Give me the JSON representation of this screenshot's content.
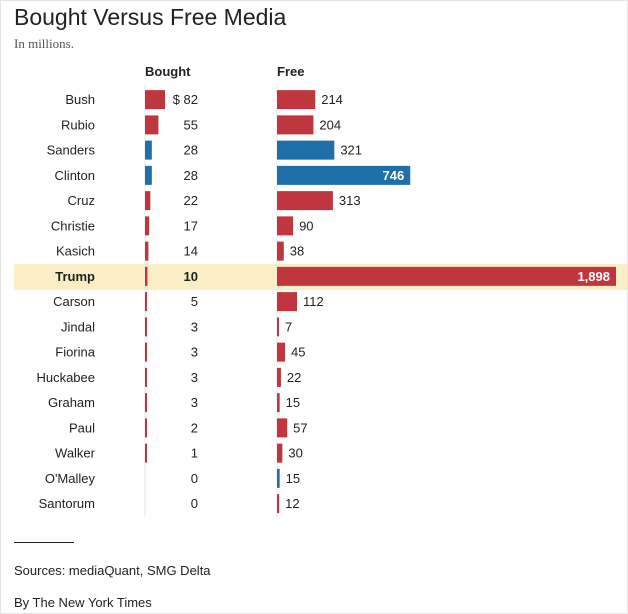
{
  "header": {
    "title": "Bought Versus Free Media",
    "subtitle": "In millions."
  },
  "colors": {
    "republican": "#c0363f",
    "democrat": "#1f6fa8",
    "highlight": "#fbeec4"
  },
  "chart_data": {
    "type": "bar",
    "title": "Bought Versus Free Media",
    "subtitle": "In millions.",
    "columns": [
      "Bought",
      "Free"
    ],
    "bought_first_label": "$ 82",
    "free_label_inside": {
      "Clinton": "746",
      "Trump": "1,898"
    },
    "highlight": "Trump",
    "categories": [
      "Bush",
      "Rubio",
      "Sanders",
      "Clinton",
      "Cruz",
      "Christie",
      "Kasich",
      "Trump",
      "Carson",
      "Jindal",
      "Fiorina",
      "Huckabee",
      "Graham",
      "Paul",
      "Walker",
      "O'Malley",
      "Santorum"
    ],
    "party": [
      "R",
      "R",
      "D",
      "D",
      "R",
      "R",
      "R",
      "R",
      "R",
      "R",
      "R",
      "R",
      "R",
      "R",
      "R",
      "D",
      "R"
    ],
    "series": [
      {
        "name": "Bought",
        "values": [
          82,
          55,
          28,
          28,
          22,
          17,
          14,
          10,
          5,
          3,
          3,
          3,
          3,
          2,
          1,
          0,
          0
        ]
      },
      {
        "name": "Free",
        "values": [
          214,
          204,
          321,
          746,
          313,
          90,
          38,
          1898,
          112,
          7,
          45,
          22,
          15,
          57,
          30,
          15,
          12
        ]
      }
    ]
  },
  "footer": {
    "sources": "Sources: mediaQuant, SMG Delta",
    "byline": "By The New York Times"
  }
}
